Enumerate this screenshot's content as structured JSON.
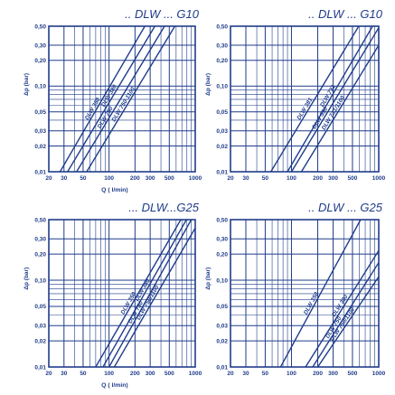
{
  "colors": {
    "ink": "#1f3c8a",
    "background": "#ffffff"
  },
  "chart_data": [
    {
      "type": "line",
      "title": ".. DLW ... G10",
      "xlabel": "Q ( l/min)",
      "ylabel": "Δp (bar)",
      "x_scale": "log",
      "y_scale": "log",
      "xlim": [
        20,
        1000
      ],
      "ylim": [
        0.01,
        0.5
      ],
      "x_ticks": [
        "20",
        "30",
        "50",
        "100",
        "200",
        "300",
        "500",
        "1000"
      ],
      "y_ticks": [
        "0,01",
        "0,02",
        "0,03",
        "0,05",
        "0,10",
        "0,20",
        "0,30",
        "0,50"
      ],
      "grid": true,
      "series": [
        {
          "name": "DLW 350",
          "x": [
            27,
            260
          ],
          "y": [
            0.01,
            0.5
          ]
        },
        {
          "name": "DLW 380",
          "x": [
            33,
            340
          ],
          "y": [
            0.01,
            0.5
          ]
        },
        {
          "name": "DLW 750",
          "x": [
            42,
            440
          ],
          "y": [
            0.01,
            0.5
          ]
        },
        {
          "name": "DLW 750-1100",
          "x": [
            55,
            580
          ],
          "y": [
            0.01,
            0.5
          ]
        }
      ]
    },
    {
      "type": "line",
      "title": ".. DLW ... G10",
      "xlabel": "",
      "ylabel": "Δp (bar)",
      "x_scale": "log",
      "y_scale": "log",
      "xlim": [
        20,
        1000
      ],
      "ylim": [
        0.01,
        0.5
      ],
      "x_ticks": [
        "20",
        "30",
        "50",
        "100",
        "200",
        "300",
        "500",
        "1000"
      ],
      "y_ticks": [
        "0,01",
        "0,02",
        "0,03",
        "0,05",
        "0,10",
        "0,20",
        "0,30",
        "0,50"
      ],
      "grid": true,
      "series": [
        {
          "name": "DLW 381",
          "x": [
            58,
            590
          ],
          "y": [
            0.01,
            0.5
          ]
        },
        {
          "name": "DLW 731",
          "x": [
            90,
            850
          ],
          "y": [
            0.01,
            0.5
          ]
        },
        {
          "name": "DLW 550",
          "x": [
            100,
            1000
          ],
          "y": [
            0.01,
            0.48
          ]
        },
        {
          "name": "DLW 731/1100",
          "x": [
            130,
            1000
          ],
          "y": [
            0.01,
            0.3
          ]
        }
      ]
    },
    {
      "type": "line",
      "title": "... DLW...G25",
      "xlabel": "Q ( l/min)",
      "ylabel": "Δp (bar)",
      "x_scale": "log",
      "y_scale": "log",
      "xlim": [
        20,
        1000
      ],
      "ylim": [
        0.01,
        0.5
      ],
      "x_ticks": [
        "20",
        "30",
        "50",
        "100",
        "200",
        "300",
        "500",
        "1000"
      ],
      "y_ticks": [
        "0,01",
        "0,02",
        "0,03",
        "0,05",
        "0,10",
        "0,20",
        "0,30",
        "0,50"
      ],
      "grid": true,
      "series": [
        {
          "name": "DLW 350",
          "x": [
            70,
            680
          ],
          "y": [
            0.01,
            0.5
          ]
        },
        {
          "name": "DLW 380",
          "x": [
            85,
            790
          ],
          "y": [
            0.01,
            0.5
          ]
        },
        {
          "name": "DLW 750",
          "x": [
            100,
            900
          ],
          "y": [
            0.01,
            0.5
          ]
        },
        {
          "name": "DLW 750/1100",
          "x": [
            115,
            1000
          ],
          "y": [
            0.01,
            0.4
          ]
        }
      ]
    },
    {
      "type": "line",
      "title": ".. DLW ... G25",
      "xlabel": "",
      "ylabel": "Δp (bar)",
      "x_scale": "log",
      "y_scale": "log",
      "xlim": [
        20,
        1000
      ],
      "ylim": [
        0.01,
        0.5
      ],
      "x_ticks": [
        "20",
        "30",
        "50",
        "100",
        "200",
        "300",
        "500",
        "1000"
      ],
      "y_ticks": [
        "0,01",
        "0,02",
        "0,03",
        "0,05",
        "0,10",
        "0,20",
        "0,30",
        "0,50"
      ],
      "grid": true,
      "series": [
        {
          "name": "DLW 350",
          "x": [
            75,
            620
          ],
          "y": [
            0.01,
            0.5
          ]
        },
        {
          "name": "DLW 380",
          "x": [
            145,
            1000
          ],
          "y": [
            0.01,
            0.22
          ]
        },
        {
          "name": "DLW 750",
          "x": [
            175,
            1000
          ],
          "y": [
            0.01,
            0.16
          ]
        },
        {
          "name": "DLW 750/1100",
          "x": [
            200,
            1000
          ],
          "y": [
            0.01,
            0.11
          ]
        }
      ]
    }
  ]
}
